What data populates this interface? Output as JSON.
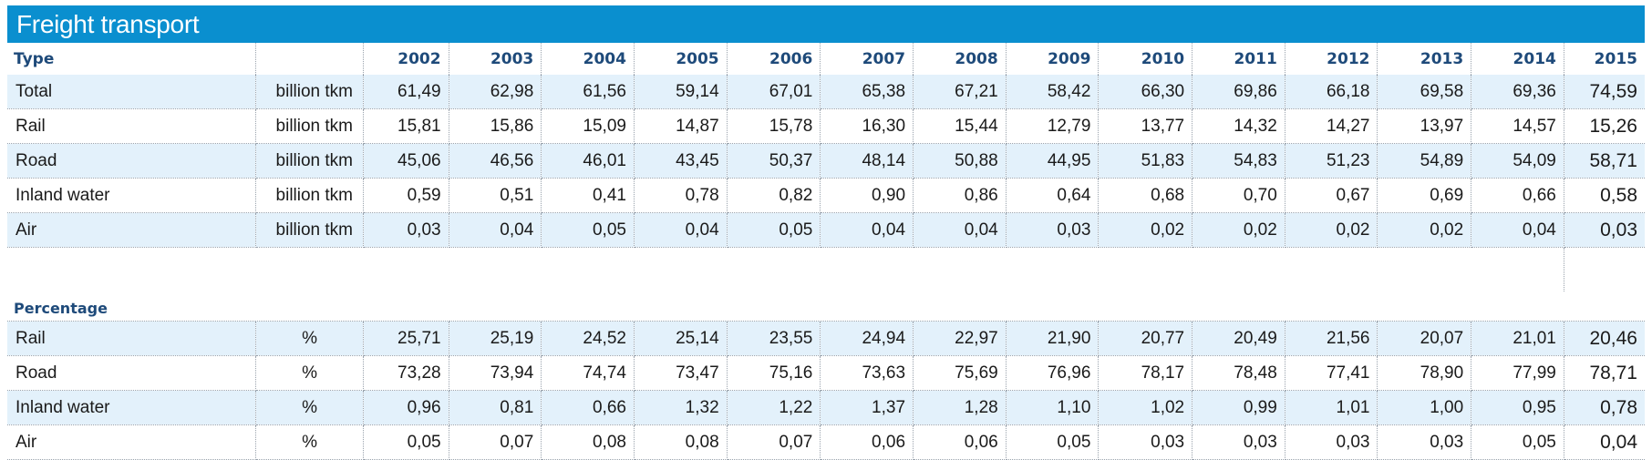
{
  "title": "Freight transport",
  "header": {
    "type_label": "Type",
    "years": [
      "2002",
      "2003",
      "2004",
      "2005",
      "2006",
      "2007",
      "2008",
      "2009",
      "2010",
      "2011",
      "2012",
      "2013",
      "2014",
      "2015"
    ]
  },
  "absolute": [
    {
      "name": "Total",
      "unit": "billion tkm",
      "values": [
        "61,49",
        "62,98",
        "61,56",
        "59,14",
        "67,01",
        "65,38",
        "67,21",
        "58,42",
        "66,30",
        "69,86",
        "66,18",
        "69,58",
        "69,36",
        "74,59"
      ]
    },
    {
      "name": "Rail",
      "unit": "billion tkm",
      "values": [
        "15,81",
        "15,86",
        "15,09",
        "14,87",
        "15,78",
        "16,30",
        "15,44",
        "12,79",
        "13,77",
        "14,32",
        "14,27",
        "13,97",
        "14,57",
        "15,26"
      ]
    },
    {
      "name": "Road",
      "unit": "billion tkm",
      "values": [
        "45,06",
        "46,56",
        "46,01",
        "43,45",
        "50,37",
        "48,14",
        "50,88",
        "44,95",
        "51,83",
        "54,83",
        "51,23",
        "54,89",
        "54,09",
        "58,71"
      ]
    },
    {
      "name": "Inland water",
      "unit": "billion tkm",
      "values": [
        "0,59",
        "0,51",
        "0,41",
        "0,78",
        "0,82",
        "0,90",
        "0,86",
        "0,64",
        "0,68",
        "0,70",
        "0,67",
        "0,69",
        "0,66",
        "0,58"
      ]
    },
    {
      "name": "Air",
      "unit": "billion tkm",
      "values": [
        "0,03",
        "0,04",
        "0,05",
        "0,04",
        "0,05",
        "0,04",
        "0,04",
        "0,03",
        "0,02",
        "0,02",
        "0,02",
        "0,02",
        "0,04",
        "0,03"
      ]
    }
  ],
  "percentage_label": "Percentage",
  "percentage": [
    {
      "name": "Rail",
      "unit": "%",
      "values": [
        "25,71",
        "25,19",
        "24,52",
        "25,14",
        "23,55",
        "24,94",
        "22,97",
        "21,90",
        "20,77",
        "20,49",
        "21,56",
        "20,07",
        "21,01",
        "20,46"
      ]
    },
    {
      "name": "Road",
      "unit": "%",
      "values": [
        "73,28",
        "73,94",
        "74,74",
        "73,47",
        "75,16",
        "73,63",
        "75,69",
        "76,96",
        "78,17",
        "78,48",
        "77,41",
        "78,90",
        "77,99",
        "78,71"
      ]
    },
    {
      "name": "Inland water",
      "unit": "%",
      "values": [
        "0,96",
        "0,81",
        "0,66",
        "1,32",
        "1,22",
        "1,37",
        "1,28",
        "1,10",
        "1,02",
        "0,99",
        "1,01",
        "1,00",
        "0,95",
        "0,78"
      ]
    },
    {
      "name": "Air",
      "unit": "%",
      "values": [
        "0,05",
        "0,07",
        "0,08",
        "0,08",
        "0,07",
        "0,06",
        "0,06",
        "0,05",
        "0,03",
        "0,03",
        "0,03",
        "0,03",
        "0,05",
        "0,04"
      ]
    }
  ],
  "colors": {
    "title_bar": "#0a8fcf",
    "row_shade": "#e3f1fb",
    "header_text": "#1e4a7a"
  }
}
